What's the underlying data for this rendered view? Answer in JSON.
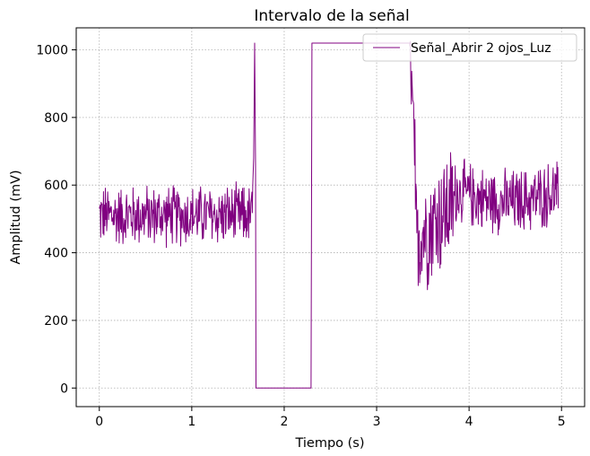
{
  "chart_data": {
    "type": "line",
    "title": "Intervalo de la señal",
    "xlabel": "Tiempo (s)",
    "ylabel": "Amplitud (mV)",
    "xlim": [
      -0.25,
      5.25
    ],
    "ylim": [
      -55,
      1065
    ],
    "xticks": [
      0,
      1,
      2,
      3,
      4,
      5
    ],
    "yticks": [
      0,
      200,
      400,
      600,
      800,
      1000
    ],
    "grid": true,
    "legend_position": "top-right",
    "series": [
      {
        "name": "Señal_Abrir 2 ojos_Luz",
        "color": "#800080",
        "description": "noisy ~510 mV from 0 to 1.68 s, spike to 1020, drops to 0 from 1.69 to 2.30 s, 1020 plateau 2.30–3.38 s, then noisy decay to ~560 mV until 4.97 s",
        "segments": [
          {
            "x0": 0.0,
            "x1": 1.66,
            "mean": 510,
            "noise": 80
          },
          {
            "x0": 1.66,
            "x1": 1.7,
            "points": [
              [
                1.66,
                600
              ],
              [
                1.67,
                680
              ],
              [
                1.68,
                1020
              ],
              [
                1.69,
                660
              ],
              [
                1.695,
                0
              ]
            ]
          },
          {
            "x0": 1.695,
            "x1": 2.29,
            "points": [
              [
                1.695,
                0
              ],
              [
                2.29,
                0
              ]
            ]
          },
          {
            "x0": 2.29,
            "x1": 3.36,
            "points": [
              [
                2.29,
                0
              ],
              [
                2.3,
                1020
              ],
              [
                3.36,
                1020
              ]
            ]
          },
          {
            "x0": 3.36,
            "x1": 4.97,
            "mean": 560,
            "noise": 120
          }
        ]
      }
    ]
  }
}
